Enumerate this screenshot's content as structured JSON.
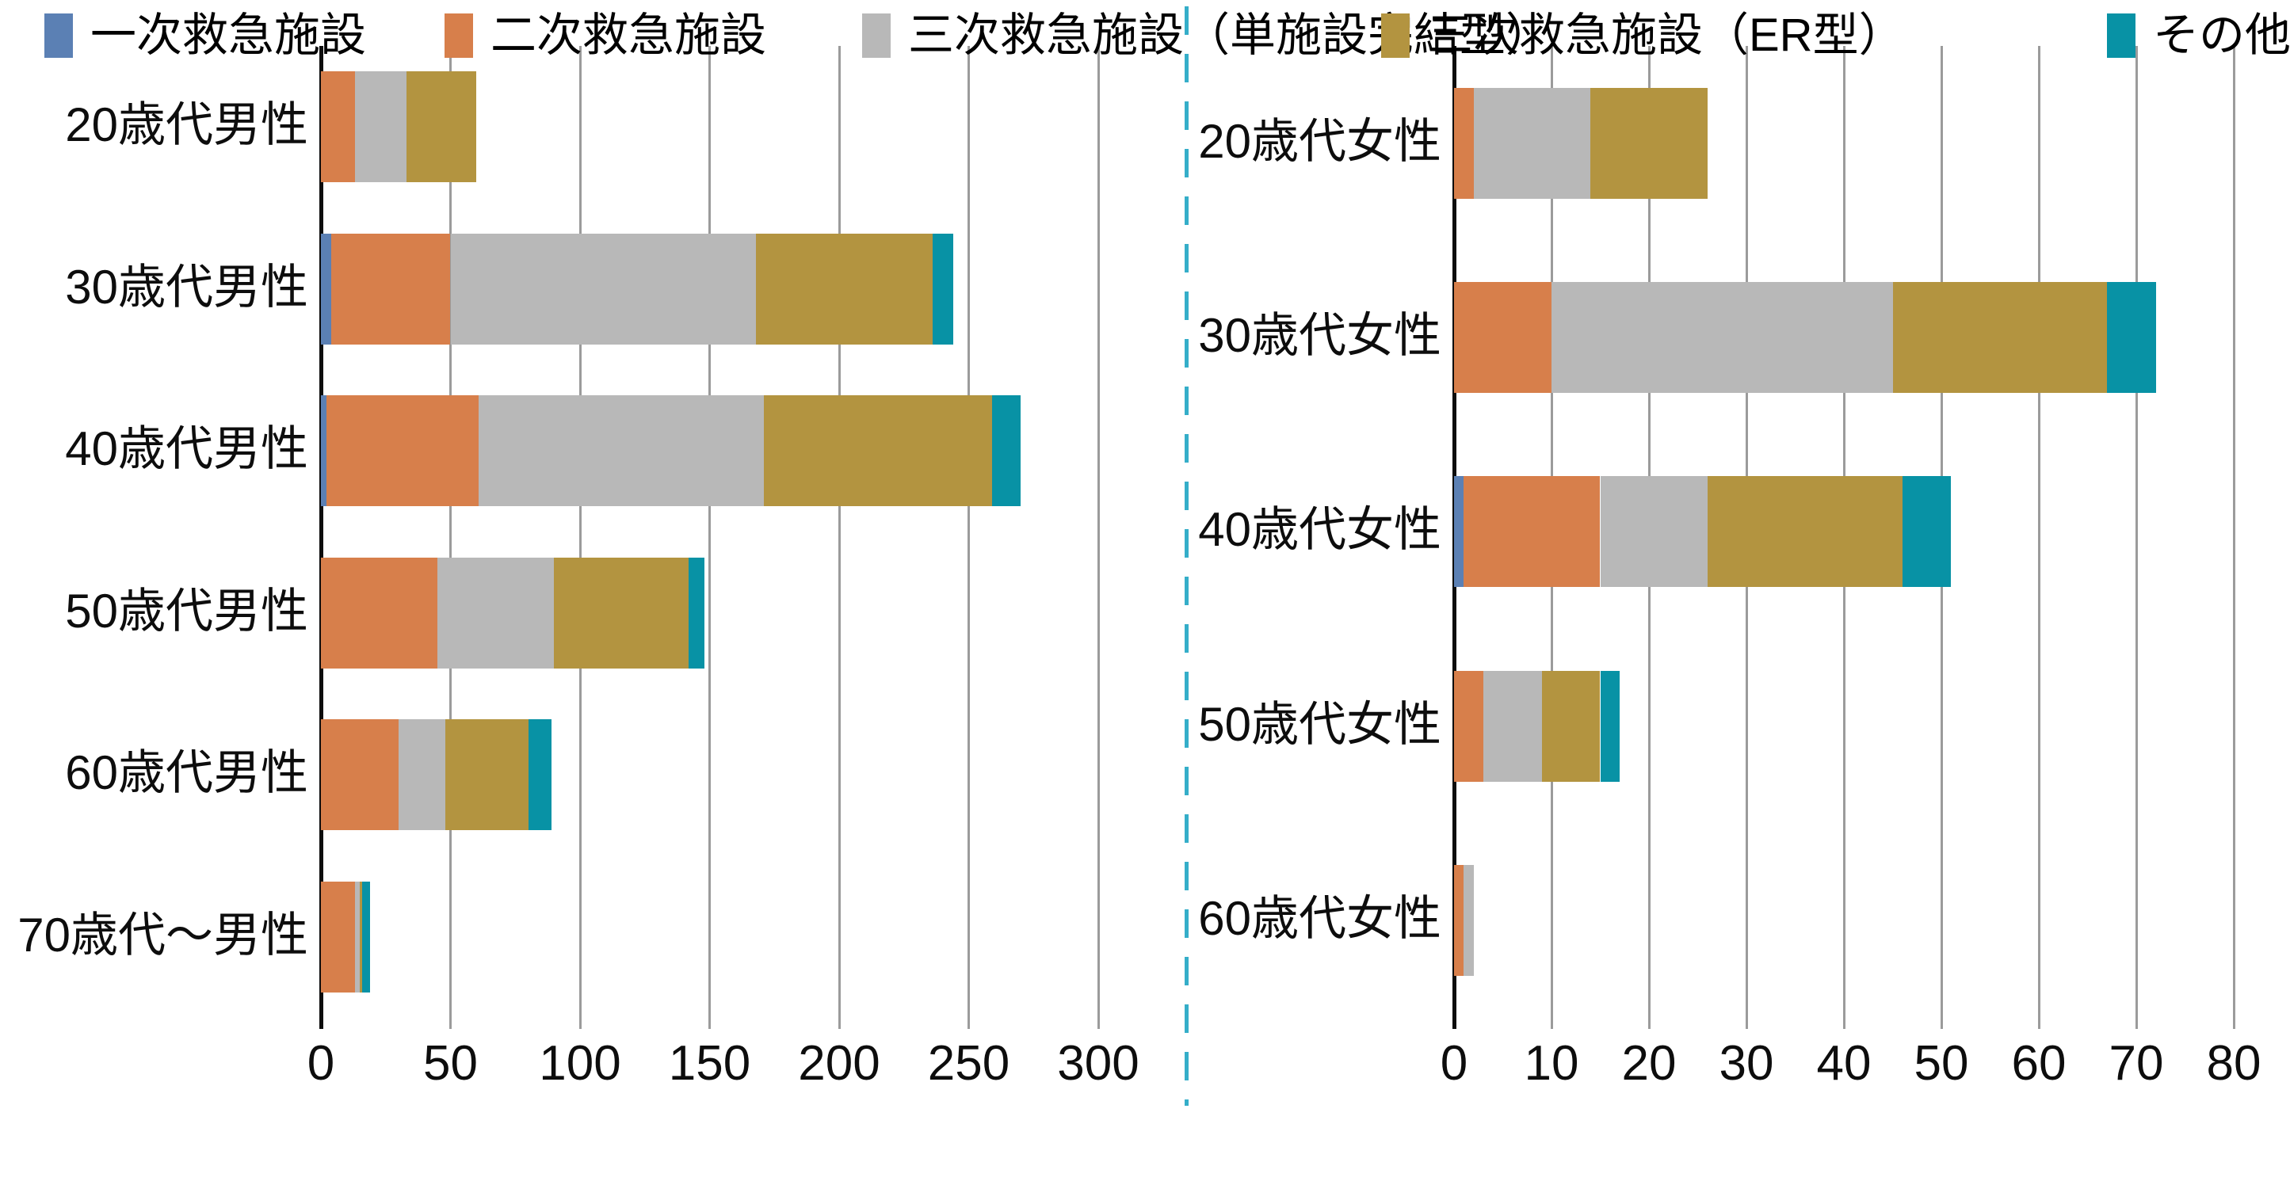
{
  "page": {
    "background": "#ffffff"
  },
  "separator": {
    "color": "#35aec9"
  },
  "legend": {
    "items": [
      {
        "label": "一次救急施設",
        "color": "#5b80b4"
      },
      {
        "label": "二次救急施設",
        "color": "#d77f4b"
      },
      {
        "label": "三次救急施設（単施設完結型）",
        "color": "#b8b8b8"
      },
      {
        "label": "三次救急施設（ER型）",
        "color": "#b39440"
      },
      {
        "label": "その他",
        "color": "#0892a5"
      }
    ]
  },
  "chart_data": [
    {
      "type": "bar",
      "orientation": "horizontal",
      "stacked": true,
      "title": "",
      "xlabel": "",
      "ylabel": "",
      "grid": true,
      "xlim": [
        0,
        300
      ],
      "x_ticks": [
        0,
        50,
        100,
        150,
        200,
        250,
        300
      ],
      "categories": [
        "20歳代男性",
        "30歳代男性",
        "40歳代男性",
        "50歳代男性",
        "60歳代男性",
        "70歳代～男性"
      ],
      "series": [
        {
          "name": "一次救急施設",
          "color": "#5b80b4",
          "values": [
            0,
            4,
            2,
            0,
            0,
            0
          ]
        },
        {
          "name": "二次救急施設",
          "color": "#d77f4b",
          "values": [
            13,
            46,
            59,
            45,
            30,
            13
          ]
        },
        {
          "name": "三次救急施設（単施設完結型）",
          "color": "#b8b8b8",
          "values": [
            20,
            118,
            110,
            45,
            18,
            2
          ]
        },
        {
          "name": "三次救急施設（ER型）",
          "color": "#b39440",
          "values": [
            27,
            68,
            88,
            52,
            32,
            1
          ]
        },
        {
          "name": "その他",
          "color": "#0892a5",
          "values": [
            0,
            8,
            11,
            6,
            9,
            3
          ]
        }
      ]
    },
    {
      "type": "bar",
      "orientation": "horizontal",
      "stacked": true,
      "title": "",
      "xlabel": "",
      "ylabel": "",
      "grid": true,
      "xlim": [
        0,
        80
      ],
      "x_ticks": [
        0,
        10,
        20,
        30,
        40,
        50,
        60,
        70,
        80
      ],
      "categories": [
        "20歳代女性",
        "30歳代女性",
        "40歳代女性",
        "50歳代女性",
        "60歳代女性"
      ],
      "series": [
        {
          "name": "一次救急施設",
          "color": "#5b80b4",
          "values": [
            0,
            0,
            1,
            0,
            0
          ]
        },
        {
          "name": "二次救急施設",
          "color": "#d77f4b",
          "values": [
            2,
            10,
            14,
            3,
            1
          ]
        },
        {
          "name": "三次救急施設（単施設完結型）",
          "color": "#b8b8b8",
          "values": [
            12,
            35,
            11,
            6,
            1
          ]
        },
        {
          "name": "三次救急施設（ER型）",
          "color": "#b39440",
          "values": [
            12,
            22,
            20,
            6,
            0
          ]
        },
        {
          "name": "その他",
          "color": "#0892a5",
          "values": [
            0,
            5,
            5,
            2,
            0
          ]
        }
      ]
    }
  ]
}
